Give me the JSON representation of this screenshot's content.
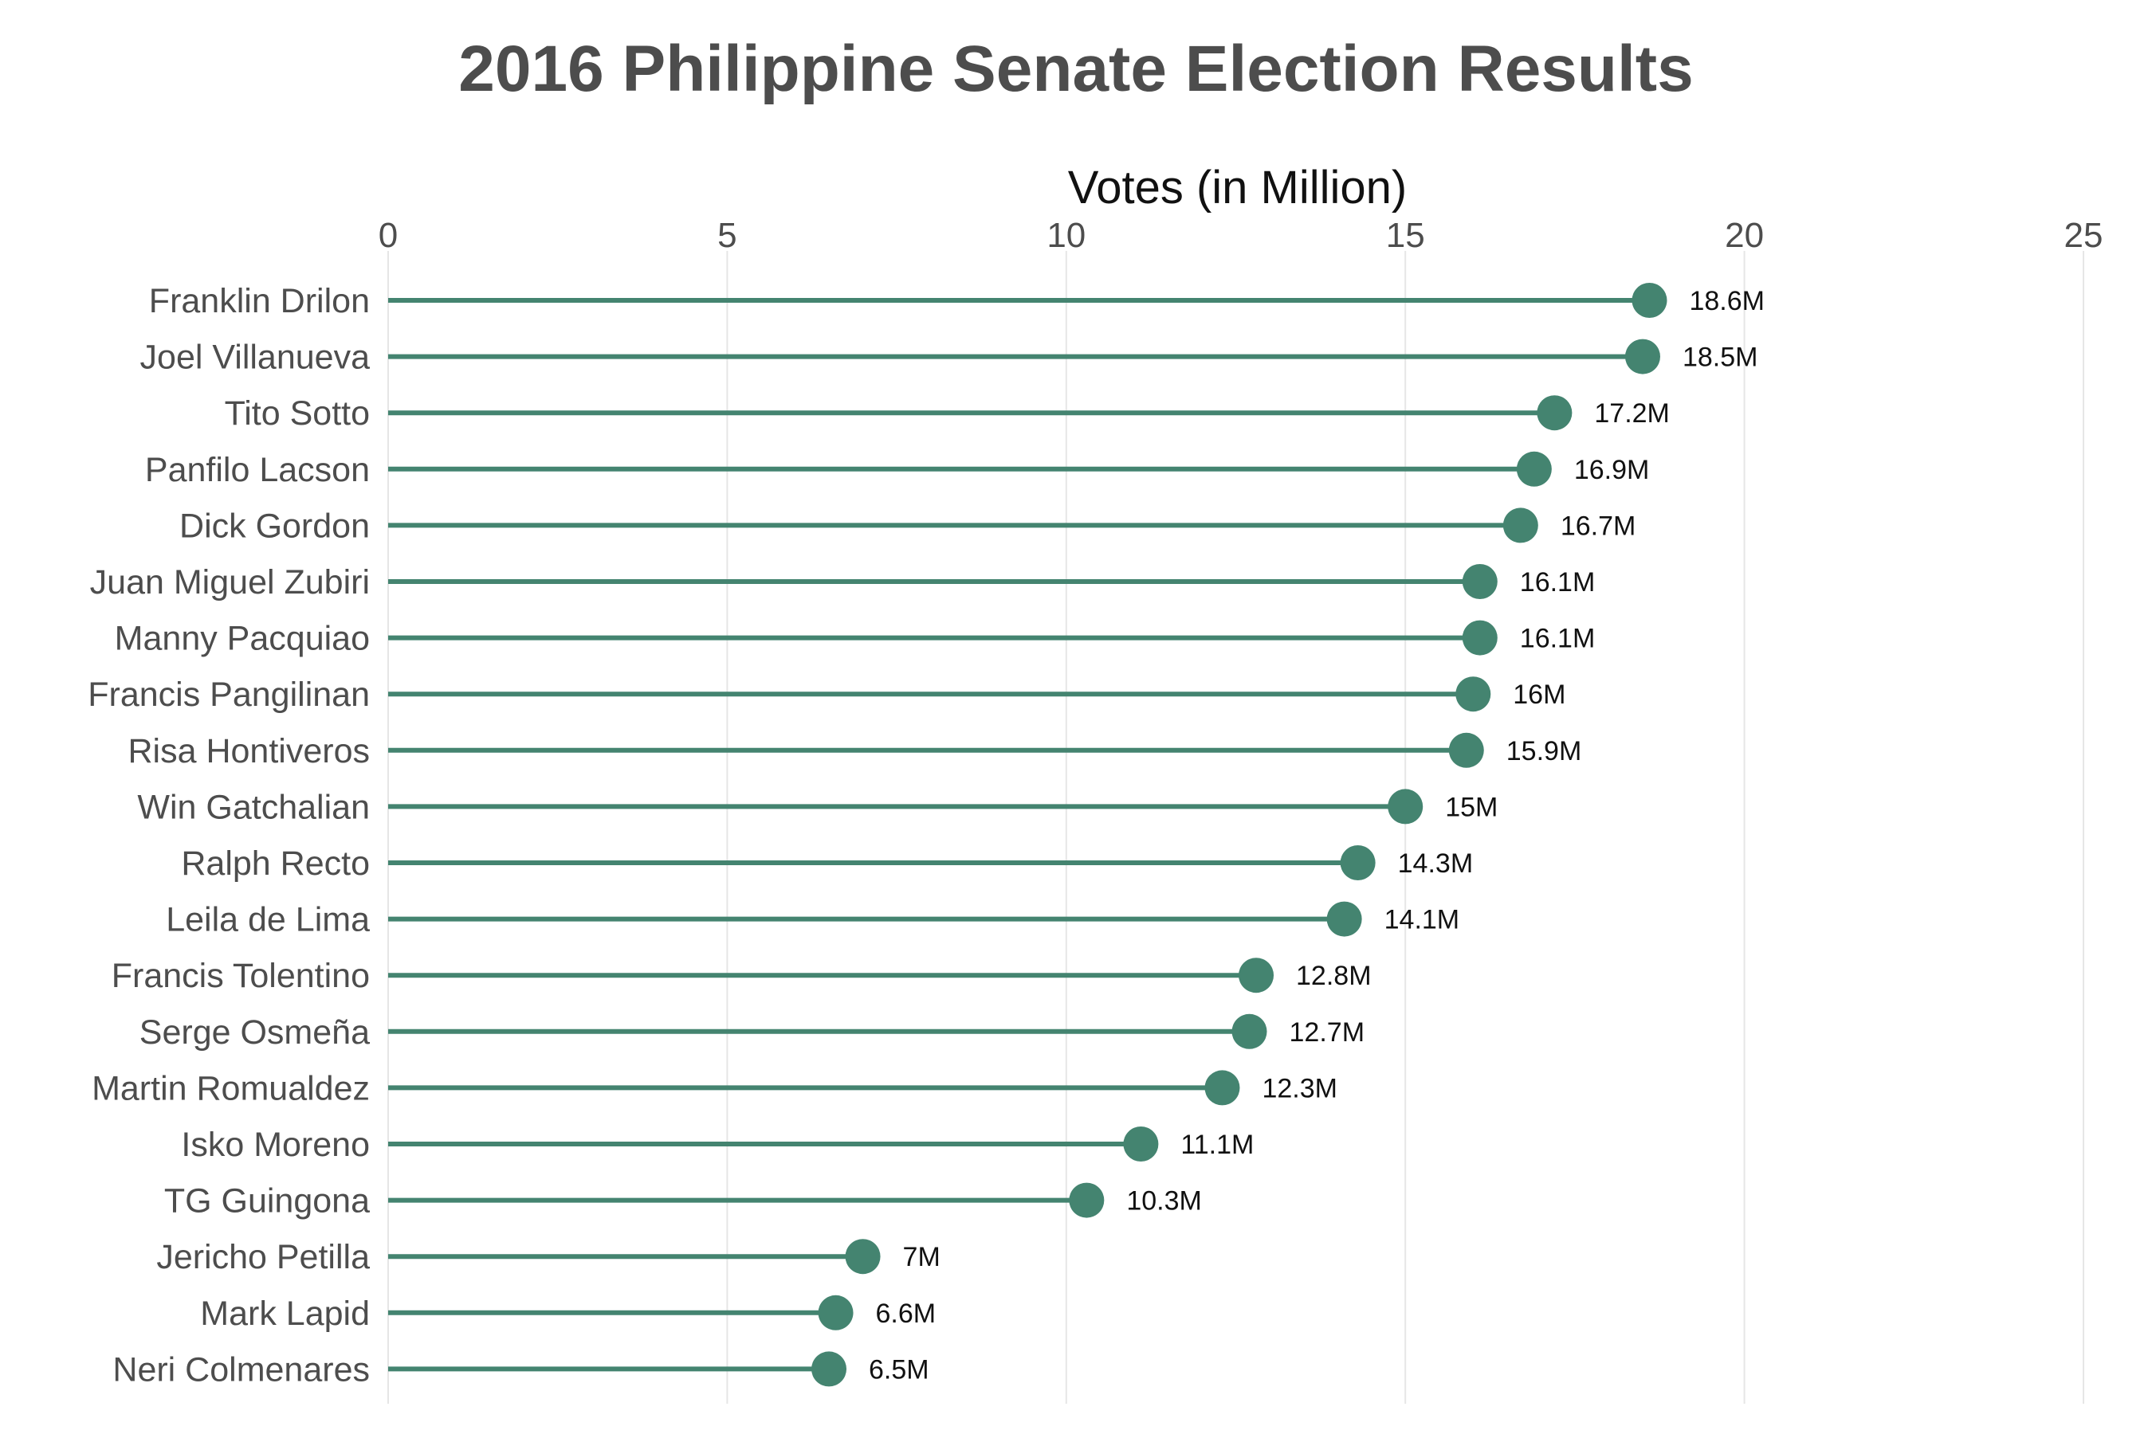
{
  "chart_data": {
    "type": "lollipop",
    "title": "2016 Philippine Senate Election Results",
    "xlabel": "Votes (in Million)",
    "ylabel": "",
    "xlim": [
      0,
      25
    ],
    "xticks": [
      0,
      5,
      10,
      15,
      20,
      25
    ],
    "x_axis_position": "top",
    "grid": "vertical",
    "color": "#448470",
    "categories": [
      "Franklin Drilon",
      "Joel Villanueva",
      "Tito Sotto",
      "Panfilo Lacson",
      "Dick Gordon",
      "Juan Miguel Zubiri",
      "Manny Pacquiao",
      "Francis Pangilinan",
      "Risa Hontiveros",
      "Win Gatchalian",
      "Ralph Recto",
      "Leila de Lima",
      "Francis Tolentino",
      "Serge Osmeña",
      "Martin Romualdez",
      "Isko Moreno",
      "TG Guingona",
      "Jericho Petilla",
      "Mark Lapid",
      "Neri Colmenares"
    ],
    "values": [
      18.6,
      18.5,
      17.2,
      16.9,
      16.7,
      16.1,
      16.1,
      16.0,
      15.9,
      15.0,
      14.3,
      14.1,
      12.8,
      12.7,
      12.3,
      11.1,
      10.3,
      7.0,
      6.6,
      6.5
    ],
    "value_labels": [
      "18.6M",
      "18.5M",
      "17.2M",
      "16.9M",
      "16.7M",
      "16.1M",
      "16.1M",
      "16M",
      "15.9M",
      "15M",
      "14.3M",
      "14.1M",
      "12.8M",
      "12.7M",
      "12.3M",
      "11.1M",
      "10.3M",
      "7M",
      "6.6M",
      "6.5M"
    ]
  }
}
